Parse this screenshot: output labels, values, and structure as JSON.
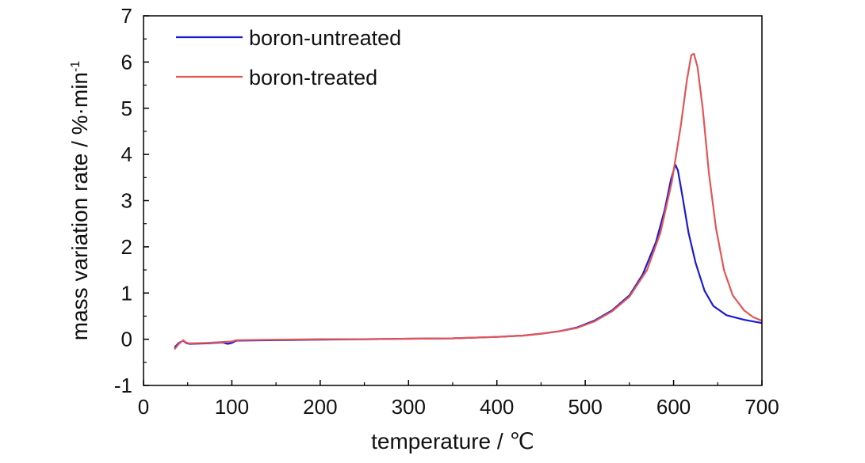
{
  "chart_data": {
    "type": "line",
    "xlabel": "temperature / ℃",
    "ylabel_main": "mass variation rate / %·min",
    "ylabel_sup": "-1",
    "xlim": [
      0,
      700
    ],
    "ylim": [
      -1,
      7
    ],
    "x_ticks": [
      0,
      100,
      200,
      300,
      400,
      500,
      600,
      700
    ],
    "y_ticks": [
      -1,
      0,
      1,
      2,
      3,
      4,
      5,
      6,
      7
    ],
    "grid": false,
    "legend_position": "top-left",
    "series": [
      {
        "name": "boron-untreated",
        "color": "#1a1ad6",
        "points": [
          [
            35,
            -0.18
          ],
          [
            40,
            -0.08
          ],
          [
            45,
            -0.03
          ],
          [
            48,
            -0.08
          ],
          [
            52,
            -0.1
          ],
          [
            70,
            -0.09
          ],
          [
            90,
            -0.07
          ],
          [
            95,
            -0.1
          ],
          [
            100,
            -0.08
          ],
          [
            105,
            -0.03
          ],
          [
            150,
            -0.02
          ],
          [
            200,
            -0.01
          ],
          [
            250,
            0.0
          ],
          [
            300,
            0.01
          ],
          [
            350,
            0.02
          ],
          [
            400,
            0.05
          ],
          [
            430,
            0.08
          ],
          [
            450,
            0.12
          ],
          [
            470,
            0.17
          ],
          [
            490,
            0.25
          ],
          [
            510,
            0.4
          ],
          [
            530,
            0.62
          ],
          [
            550,
            0.95
          ],
          [
            565,
            1.4
          ],
          [
            580,
            2.1
          ],
          [
            590,
            2.8
          ],
          [
            597,
            3.45
          ],
          [
            602,
            3.78
          ],
          [
            605,
            3.65
          ],
          [
            610,
            3.1
          ],
          [
            617,
            2.3
          ],
          [
            625,
            1.65
          ],
          [
            635,
            1.05
          ],
          [
            645,
            0.72
          ],
          [
            660,
            0.52
          ],
          [
            680,
            0.42
          ],
          [
            700,
            0.35
          ]
        ]
      },
      {
        "name": "boron-treated",
        "color": "#e35555",
        "points": [
          [
            35,
            -0.22
          ],
          [
            40,
            -0.1
          ],
          [
            45,
            -0.02
          ],
          [
            48,
            -0.07
          ],
          [
            52,
            -0.09
          ],
          [
            70,
            -0.08
          ],
          [
            100,
            -0.05
          ],
          [
            105,
            -0.02
          ],
          [
            150,
            -0.01
          ],
          [
            200,
            0.0
          ],
          [
            250,
            0.0
          ],
          [
            300,
            0.01
          ],
          [
            350,
            0.02
          ],
          [
            400,
            0.05
          ],
          [
            430,
            0.08
          ],
          [
            450,
            0.12
          ],
          [
            470,
            0.17
          ],
          [
            490,
            0.24
          ],
          [
            510,
            0.38
          ],
          [
            530,
            0.6
          ],
          [
            550,
            0.92
          ],
          [
            570,
            1.5
          ],
          [
            585,
            2.3
          ],
          [
            598,
            3.4
          ],
          [
            608,
            4.6
          ],
          [
            615,
            5.6
          ],
          [
            620,
            6.15
          ],
          [
            623,
            6.18
          ],
          [
            627,
            5.9
          ],
          [
            633,
            5.0
          ],
          [
            640,
            3.6
          ],
          [
            648,
            2.4
          ],
          [
            657,
            1.5
          ],
          [
            667,
            0.95
          ],
          [
            680,
            0.62
          ],
          [
            690,
            0.48
          ],
          [
            700,
            0.4
          ]
        ]
      }
    ]
  }
}
